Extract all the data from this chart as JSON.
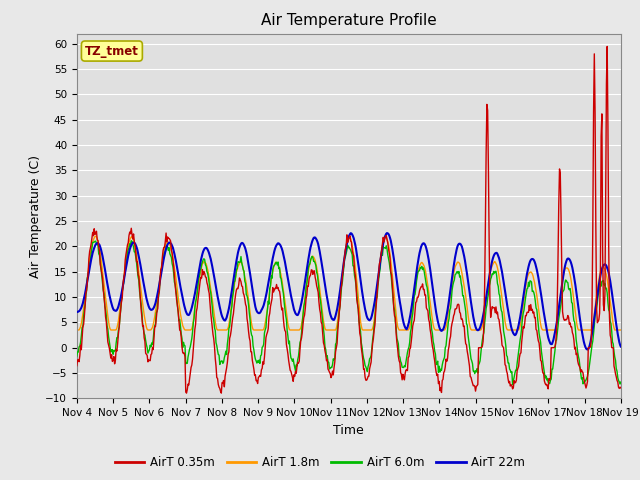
{
  "title": "Air Temperature Profile",
  "xlabel": "Time",
  "ylabel": "Air Temperature (C)",
  "ylim": [
    -10,
    62
  ],
  "yticks": [
    -10,
    -5,
    0,
    5,
    10,
    15,
    20,
    25,
    30,
    35,
    40,
    45,
    50,
    55,
    60
  ],
  "x_labels": [
    "Nov 4",
    "Nov 5",
    "Nov 6",
    "Nov 7",
    "Nov 8",
    "Nov 9",
    "Nov 10",
    "Nov 11",
    "Nov 12",
    "Nov 13",
    "Nov 14",
    "Nov 15",
    "Nov 16",
    "Nov 17",
    "Nov 18",
    "Nov 19"
  ],
  "x_positions": [
    0,
    1,
    2,
    3,
    4,
    5,
    6,
    7,
    8,
    9,
    10,
    11,
    12,
    13,
    14,
    15
  ],
  "colors": {
    "red": "#CC0000",
    "orange": "#FF9900",
    "green": "#00BB00",
    "blue": "#0000CC"
  },
  "legend_labels": [
    "AirT 0.35m",
    "AirT 1.8m",
    "AirT 6.0m",
    "AirT 22m"
  ],
  "annotation_text": "TZ_tmet",
  "annotation_color": "#880000",
  "annotation_bg": "#FFFF99",
  "background_color": "#E8E8E8",
  "plot_bg_color": "#E0E0E0",
  "grid_color": "#FFFFFF"
}
